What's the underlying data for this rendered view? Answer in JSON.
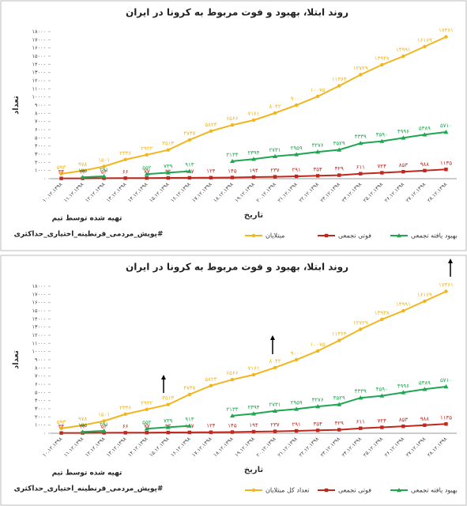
{
  "chart_data": [
    {
      "type": "line",
      "title": "روند ابتلا، بهبود و فوت مربوط به کرونا در ایران",
      "x_label": "تاریخ",
      "y_label": "تعداد",
      "notes": [
        "تهیه شده توسط تیم",
        "#پویش_مردمی_قرنطینه_اختیاری_حداکثری"
      ],
      "categories": [
        "۱۰.۱۲.۱۳۹۸",
        "۱۱.۱۲.۱۳۹۸",
        "۱۲.۱۲.۱۳۹۸",
        "۱۳.۱۲.۱۳۹۸",
        "۱۴.۱۲.۱۳۹۸",
        "۱۵.۱۲.۱۳۹۸",
        "۱۶.۱۲.۱۳۹۸",
        "۱۷.۱۲.۱۳۹۸",
        "۱۸.۱۲.۱۳۹۸",
        "۱۹.۱۲.۱۳۹۸",
        "۲۰.۱۲.۱۳۹۸",
        "۲۱.۱۲.۱۳۹۸",
        "۲۲.۱۲.۱۳۹۸",
        "۲۳.۱۲.۱۳۹۸",
        "۲۴.۱۲.۱۳۹۸",
        "۲۵.۱۲.۱۳۹۸",
        "۲۶.۱۲.۱۳۹۸",
        "۲۷.۱۲.۱۳۹۸",
        "۲۸.۱۲.۱۳۹۸"
      ],
      "series": [
        {
          "name": "مبتلایان",
          "color": "#f2b51c",
          "marker": "circle",
          "values": [
            593,
            978,
            1501,
            2336,
            2922,
            3513,
            4747,
            5823,
            6566,
            7161,
            8042,
            9000,
            10075,
            11364,
            12729,
            13938,
            14991,
            16169,
            17361
          ],
          "value_labels": [
            "۵۹۳",
            "۹۷۸",
            "۱۵۰۱",
            "۲۳۳۶",
            "۲۹۲۲",
            "۳۵۱۳",
            "۴۷۴۷",
            "۵۸۲۳",
            "۶۵۶۶",
            "۷۱۶۱",
            "۸۰۴۲",
            "۹۰۰۰",
            "۱۰۰۷۵",
            "۱۱۳۶۴",
            "۱۲۷۲۹",
            "۱۳۹۳۸",
            "۱۴۹۹۱",
            "۱۶۱۶۹",
            "۱۷۳۶۱"
          ]
        },
        {
          "name": "فوتی تجمعی",
          "color": "#c0281e",
          "marker": "square",
          "values": [
            34,
            43,
            54,
            66,
            77,
            92,
            107,
            124,
            145,
            194,
            237,
            291,
            354,
            429,
            611,
            724,
            853,
            988,
            1135
          ],
          "value_labels": [
            "۳۴",
            "۴۳",
            "۵۴",
            "۶۶",
            "۷۷",
            "۹۲",
            "۱۰۷",
            "۱۲۴",
            "۱۴۵",
            "۱۹۴",
            "۲۳۷",
            "۲۹۱",
            "۳۵۴",
            "۴۲۹",
            "۶۱۱",
            "۷۲۴",
            "۸۵۳",
            "۹۸۸",
            "۱۱۳۵"
          ]
        },
        {
          "name": "بهبود یافته تجمعی",
          "color": "#1ea650",
          "marker": "triangle",
          "values": [
            null,
            175,
            291,
            null,
            552,
            739,
            913,
            null,
            2134,
            2394,
            2731,
            2959,
            3276,
            3529,
            4339,
            4590,
            4996,
            5389,
            5710
          ],
          "value_labels": [
            null,
            "۱۷۵",
            "۲۹۱",
            null,
            "۵۵۲",
            "۷۳۹",
            "۹۱۳",
            null,
            "۲۱۳۴",
            "۲۳۹۴",
            "۲۷۳۱",
            "۲۹۵۹",
            "۳۲۷۶",
            "۳۵۲۹",
            "۴۳۳۹",
            "۴۵۹۰",
            "۴۹۹۶",
            "۵۳۸۹",
            "۵۷۱۰"
          ]
        }
      ],
      "ylim": [
        0,
        18000
      ],
      "yticks": [
        {
          "value": 0,
          "label": "۰"
        },
        {
          "value": 1000,
          "label": "۱۰۰۰"
        },
        {
          "value": 2000,
          "label": "۲۰۰۰"
        },
        {
          "value": 3000,
          "label": "۳۰۰۰"
        },
        {
          "value": 4000,
          "label": "۴۰۰۰"
        },
        {
          "value": 5000,
          "label": "۵۰۰۰"
        },
        {
          "value": 6000,
          "label": "۶۰۰۰"
        },
        {
          "value": 7000,
          "label": "۷۰۰۰"
        },
        {
          "value": 8000,
          "label": "۸۰۰۰"
        },
        {
          "value": 9000,
          "label": "۹۰۰۰"
        },
        {
          "value": 10000,
          "label": "۱۰۰۰۰"
        },
        {
          "value": 11000,
          "label": "۱۱۰۰۰"
        },
        {
          "value": 12000,
          "label": "۱۲۰۰۰"
        },
        {
          "value": 13000,
          "label": "۱۳۰۰۰"
        },
        {
          "value": 14000,
          "label": "۱۴۰۰۰"
        },
        {
          "value": 15000,
          "label": "۱۵۰۰۰"
        },
        {
          "value": 16000,
          "label": "۱۶۰۰۰"
        },
        {
          "value": 17000,
          "label": "۱۷۰۰۰"
        },
        {
          "value": 18000,
          "label": "۱۸۰۰۰"
        }
      ],
      "grid": false,
      "legend": "bottom"
    },
    {
      "type": "line",
      "title": "روند ابتلا، بهبود و فوت مربوط به کرونا در ایران",
      "x_label": "تاریخ",
      "y_label": "تعداد",
      "notes": [
        "تهیه شده توسط تیم",
        "#پویش_مردمی_قرنطینه_اختیاری_حداکثری"
      ],
      "categories": [
        "۱۰.۱۲.۱۳۹۸",
        "۱۱.۱۲.۱۳۹۸",
        "۱۲.۱۲.۱۳۹۸",
        "۱۳.۱۲.۱۳۹۸",
        "۱۴.۱۲.۱۳۹۸",
        "۱۵.۱۲.۱۳۹۸",
        "۱۶.۱۲.۱۳۹۸",
        "۱۷.۱۲.۱۳۹۸",
        "۱۸.۱۲.۱۳۹۸",
        "۱۹.۱۲.۱۳۹۸",
        "۲۰.۱۲.۱۳۹۸",
        "۲۱.۱۲.۱۳۹۸",
        "۲۲.۱۲.۱۳۹۸",
        "۲۳.۱۲.۱۳۹۸",
        "۲۴.۱۲.۱۳۹۸",
        "۲۵.۱۲.۱۳۹۸",
        "۲۶.۱۲.۱۳۹۸",
        "۲۷.۱۲.۱۳۹۸",
        "۲۸.۱۲.۱۳۹۸"
      ],
      "series": [
        {
          "name": "تعداد کل مبتلایان",
          "color": "#f2b51c",
          "marker": "circle",
          "values": [
            593,
            978,
            1501,
            2336,
            2922,
            3513,
            4747,
            5823,
            6566,
            7161,
            8042,
            9000,
            10075,
            11364,
            12729,
            13938,
            14991,
            16169,
            17361
          ],
          "value_labels": [
            "۵۹۳",
            "۹۷۸",
            "۱۵۰۱",
            "۲۳۳۶",
            "۲۹۲۲",
            "۳۵۱۳",
            "۴۷۴۷",
            "۵۸۲۳",
            "۶۵۶۶",
            "۷۱۶۱",
            "۸۰۴۲",
            "۹۰۰۰",
            "۱۰۰۷۵",
            "۱۱۳۶۴",
            "۱۲۷۲۹",
            "۱۳۹۳۸",
            "۱۴۹۹۱",
            "۱۶۱۶۹",
            "۱۷۳۶۱"
          ]
        },
        {
          "name": "فوتی تجمعی",
          "color": "#c0281e",
          "marker": "square",
          "values": [
            34,
            43,
            54,
            66,
            77,
            92,
            107,
            124,
            145,
            194,
            237,
            291,
            354,
            429,
            611,
            724,
            853,
            988,
            1135
          ],
          "value_labels": [
            "۳۴",
            "۴۳",
            "۵۴",
            "۶۶",
            "۷۷",
            "۹۲",
            "۱۰۷",
            "۱۲۴",
            "۱۴۵",
            "۱۹۴",
            "۲۳۷",
            "۲۹۱",
            "۳۵۴",
            "۴۲۹",
            "۶۱۱",
            "۷۲۴",
            "۸۵۳",
            "۹۸۸",
            "۱۱۳۵"
          ]
        },
        {
          "name": "بهبود یافته تجمعی",
          "color": "#1ea650",
          "marker": "triangle",
          "values": [
            null,
            175,
            291,
            null,
            552,
            739,
            913,
            null,
            2134,
            2394,
            2731,
            2959,
            3276,
            3529,
            4339,
            4590,
            4996,
            5389,
            5710
          ],
          "value_labels": [
            null,
            "۱۷۵",
            "۲۹۱",
            null,
            "۵۵۲",
            "۷۳۹",
            "۹۱۳",
            null,
            "۲۱۳۴",
            "۲۳۹۴",
            "۲۷۳۱",
            "۲۹۵۹",
            "۳۲۷۶",
            "۳۵۲۹",
            "۴۳۳۹",
            "۴۵۹۰",
            "۴۹۹۶",
            "۵۳۸۹",
            "۵۷۱۰"
          ]
        }
      ],
      "ylim": [
        0,
        18000
      ],
      "yticks": [
        {
          "value": 0,
          "label": "۰"
        },
        {
          "value": 1000,
          "label": "۱۰۰۰"
        },
        {
          "value": 2000,
          "label": "۲۰۰۰"
        },
        {
          "value": 3000,
          "label": "۳۰۰۰"
        },
        {
          "value": 4000,
          "label": "۴۰۰۰"
        },
        {
          "value": 5000,
          "label": "۵۰۰۰"
        },
        {
          "value": 6000,
          "label": "۶۰۰۰"
        },
        {
          "value": 7000,
          "label": "۷۰۰۰"
        },
        {
          "value": 8000,
          "label": "۸۰۰۰"
        },
        {
          "value": 9000,
          "label": "۹۰۰۰"
        },
        {
          "value": 10000,
          "label": "۱۰۰۰۰"
        },
        {
          "value": 11000,
          "label": "۱۱۰۰۰"
        },
        {
          "value": 12000,
          "label": "۱۲۰۰۰"
        },
        {
          "value": 13000,
          "label": "۱۳۰۰۰"
        },
        {
          "value": 14000,
          "label": "۱۴۰۰۰"
        },
        {
          "value": 15000,
          "label": "۱۵۰۰۰"
        },
        {
          "value": 16000,
          "label": "۱۶۰۰۰"
        },
        {
          "value": 17000,
          "label": "۱۷۰۰۰"
        },
        {
          "value": 18000,
          "label": "۱۸۰۰۰"
        }
      ],
      "grid": false,
      "legend": "bottom"
    }
  ]
}
